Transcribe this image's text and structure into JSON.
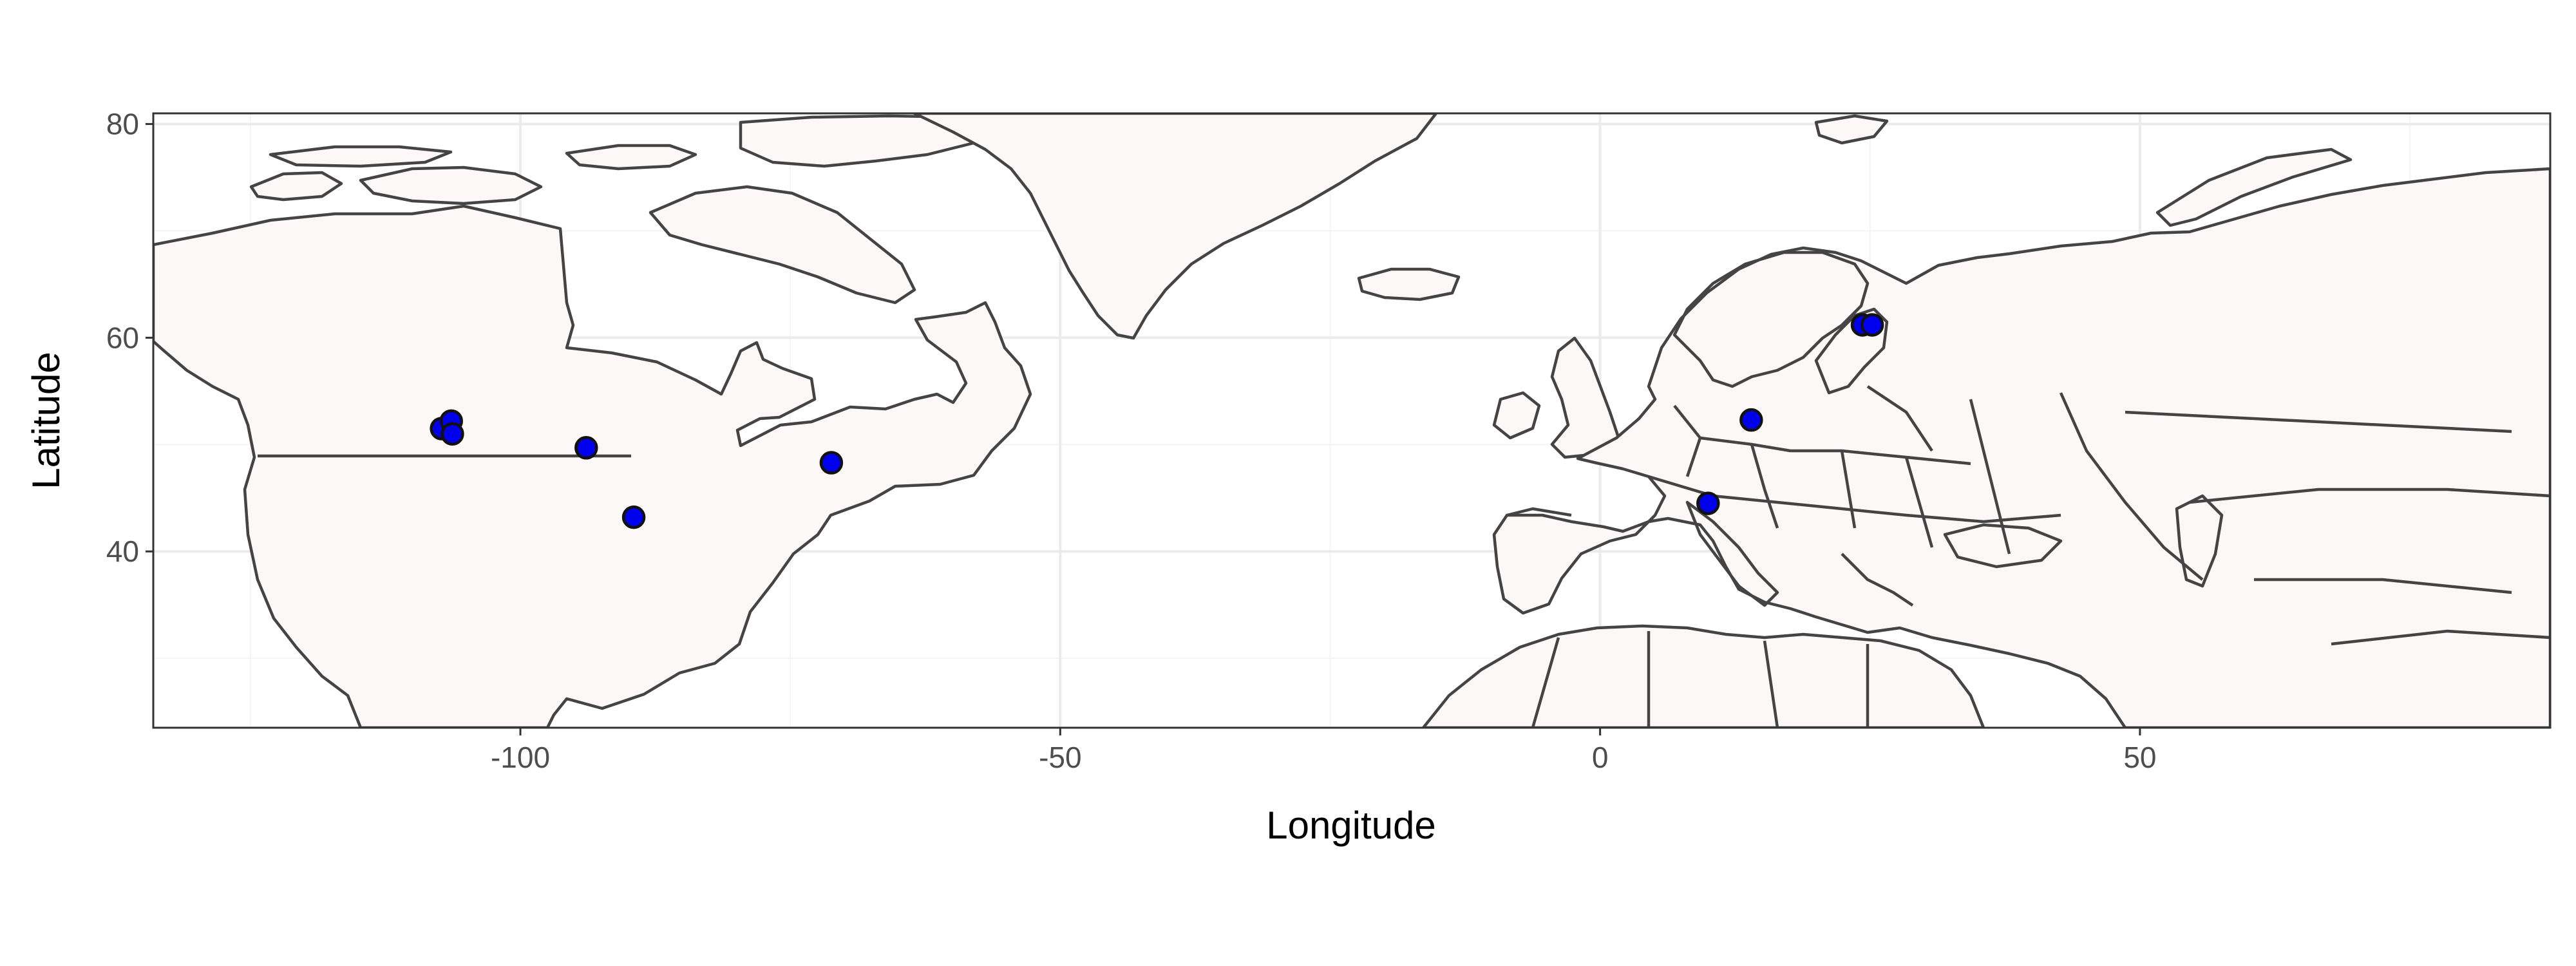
{
  "chart_data": {
    "type": "scatter",
    "xlabel": "Longitude",
    "ylabel": "Latitude",
    "xlim": [
      -134,
      88
    ],
    "ylim": [
      23.5,
      81
    ],
    "x_ticks": [
      -100,
      -50,
      0,
      50
    ],
    "y_ticks": [
      40,
      60,
      80
    ],
    "x_tick_labels": [
      "-100",
      "-50",
      "0",
      "50"
    ],
    "y_tick_labels": [
      "40",
      "60",
      "80"
    ],
    "grid": true,
    "basemap": "world country outlines",
    "point_color": "#0000ee",
    "land_color": "#fcf8f7",
    "outline_color": "#444444",
    "points": [
      {
        "lon": -107.3,
        "lat": 51.5
      },
      {
        "lon": -106.4,
        "lat": 52.2
      },
      {
        "lon": -106.3,
        "lat": 51.0
      },
      {
        "lon": -93.9,
        "lat": 49.7
      },
      {
        "lon": -89.5,
        "lat": 43.2
      },
      {
        "lon": -71.2,
        "lat": 48.3
      },
      {
        "lon": 10.0,
        "lat": 44.5
      },
      {
        "lon": 14.0,
        "lat": 52.3
      },
      {
        "lon": 24.3,
        "lat": 61.2
      },
      {
        "lon": 25.2,
        "lat": 61.2
      }
    ]
  }
}
